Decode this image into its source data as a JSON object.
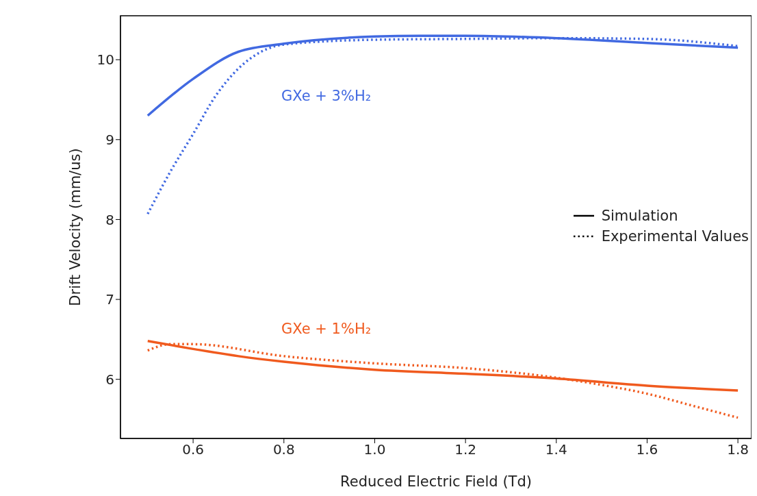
{
  "chart_data": {
    "type": "line",
    "xlabel": "Reduced Electric Field (Td)",
    "ylabel": "Drift Velocity (mm/us)",
    "xlim": [
      0.44,
      1.83
    ],
    "xticks": [
      0.6,
      0.8,
      {
        "value": 1.0,
        "label": "1.0"
      },
      1.2,
      1.4,
      1.6,
      1.8
    ],
    "ylim": [
      5.26,
      10.55
    ],
    "yticks": [
      6,
      7,
      8,
      9,
      10
    ],
    "marker": "none",
    "series": [
      {
        "color": "#4169e1",
        "line_style": "solid",
        "x": [
          0.5,
          0.6,
          0.7,
          0.8,
          1.0,
          1.1,
          1.2,
          1.4,
          1.6,
          1.8
        ],
        "values": [
          9.3,
          9.76,
          10.1,
          10.2,
          10.29,
          10.3,
          10.3,
          10.27,
          10.21,
          10.15
        ]
      },
      {
        "color": "#4169e1",
        "line_style": "dotted",
        "x": [
          0.5,
          0.55,
          0.6,
          0.65,
          0.7,
          0.75,
          0.8,
          1.0,
          1.2,
          1.4,
          1.6,
          1.8
        ],
        "values": [
          8.07,
          8.6,
          9.07,
          9.55,
          9.89,
          10.1,
          10.19,
          10.25,
          10.26,
          10.27,
          10.26,
          10.17
        ]
      },
      {
        "color": "#f05a1e",
        "line_style": "solid",
        "x": [
          0.5,
          0.6,
          0.7,
          0.8,
          1.0,
          1.2,
          1.4,
          1.6,
          1.8
        ],
        "values": [
          6.48,
          6.38,
          6.29,
          6.22,
          6.12,
          6.07,
          6.01,
          5.92,
          5.86
        ]
      },
      {
        "color": "#f05a1e",
        "line_style": "dotted",
        "x": [
          0.5,
          0.55,
          0.6,
          0.8,
          1.0,
          1.2,
          1.4,
          1.5,
          1.6,
          1.7,
          1.8
        ],
        "values": [
          6.36,
          6.44,
          6.44,
          6.29,
          6.2,
          6.14,
          6.02,
          5.93,
          5.82,
          5.67,
          5.52
        ]
      }
    ],
    "annotations": [
      "GXe + 3%H₂",
      "GXe + 1%H₂",
      "Simulation",
      "Experimental Values"
    ]
  }
}
